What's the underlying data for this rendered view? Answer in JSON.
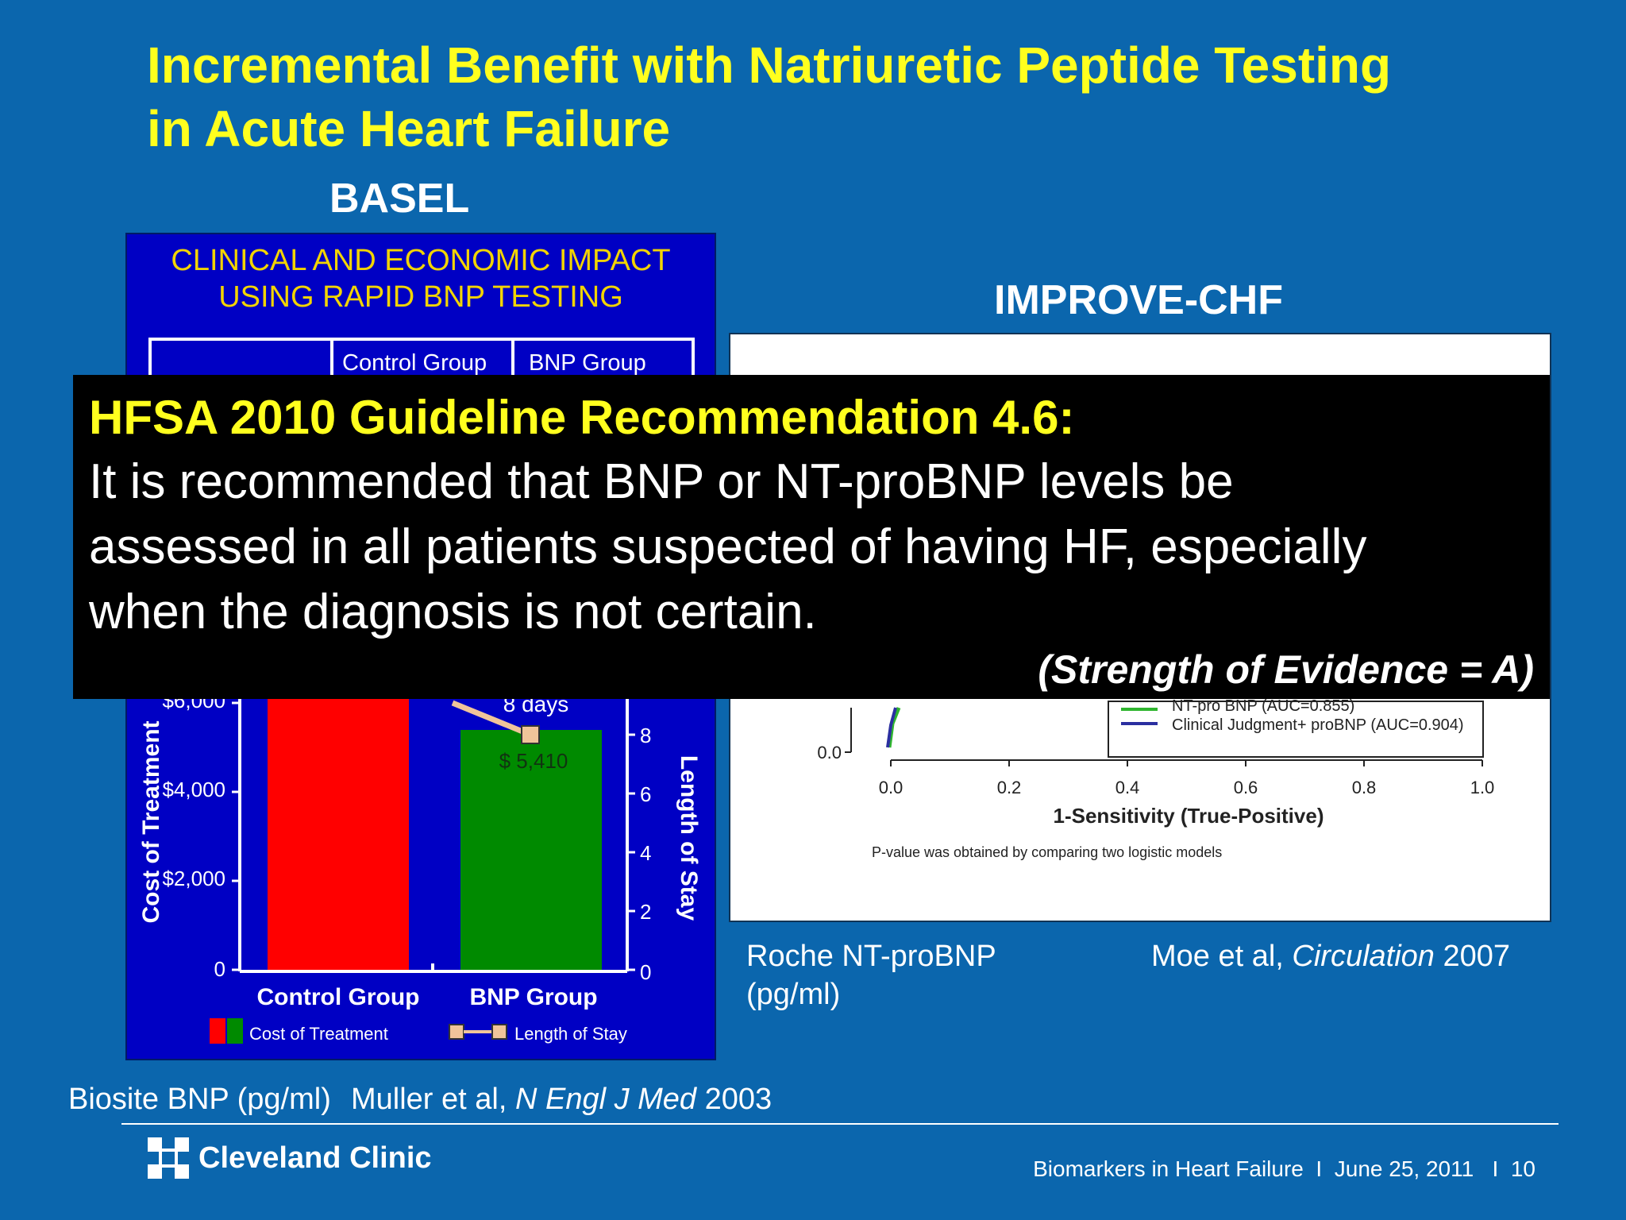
{
  "title": {
    "line1": "Incremental Benefit with Natriuretic Peptide Testing",
    "line2": "in Acute Heart Failure"
  },
  "basel": {
    "label": "BASEL",
    "header_line1": "CLINICAL AND ECONOMIC IMPACT",
    "header_line2": "USING RAPID BNP TESTING",
    "table_headers": [
      "Control Group",
      "BNP Group"
    ],
    "chart": {
      "y_left_label": "Cost of Treatment",
      "y_right_label": "Length of Stay",
      "y_left_ticks": [
        "0",
        "$2,000",
        "$4,000",
        "$6,000"
      ],
      "y_right_ticks": [
        "0",
        "2",
        "4",
        "6",
        "8"
      ],
      "categories": [
        "Control Group",
        "BNP Group"
      ],
      "annotation_days": "8 days",
      "annotation_cost": "$ 5,410",
      "legend_cost": "Cost of Treatment",
      "legend_stay": "Length of Stay",
      "colors": {
        "control": "#ff0000",
        "bnp": "#008a00",
        "stay_marker": "#f0c49a"
      }
    },
    "source_axis": "Biosite BNP (pg/ml)",
    "citation_prefix": "Muller et al, ",
    "citation_journal": "N Engl J Med",
    "citation_year": " 2003"
  },
  "improve": {
    "label": "IMPROVE-CHF",
    "y_tick_visible": "0.0",
    "x_ticks": [
      "0.0",
      "0.2",
      "0.4",
      "0.6",
      "0.8",
      "1.0"
    ],
    "x_label": "1-Sensitivity (True-Positive)",
    "legend_partial": "NT-pro BNP (AUC=0.855)",
    "legend_full": "Clinical Judgment+ proBNP (AUC=0.904)",
    "footnote": "P-value was obtained by comparing two logistic models",
    "colors": {
      "green_curve": "#2fb52f",
      "blue_curve": "#2b2fa0"
    },
    "source_axis_line1": "Roche NT-proBNP",
    "source_axis_line2": "(pg/ml)",
    "citation_prefix": "Moe et al, ",
    "citation_journal": "Circulation",
    "citation_year": " 2007"
  },
  "recommendation": {
    "heading": "HFSA 2010 Guideline Recommendation 4.6:",
    "body_line1": "It is recommended that BNP or NT-proBNP levels be",
    "body_line2": "assessed in all patients suspected of having HF, especially",
    "body_line3": "when the diagnosis is not certain.",
    "strength": "(Strength of Evidence = A)"
  },
  "footer": {
    "logo_text": "Cleveland Clinic",
    "meta": "Biomarkers in Heart Failure  I  June 25, 2011   I  10"
  },
  "theme": {
    "background": "#0b66ad",
    "title_color": "#ffff1e"
  }
}
